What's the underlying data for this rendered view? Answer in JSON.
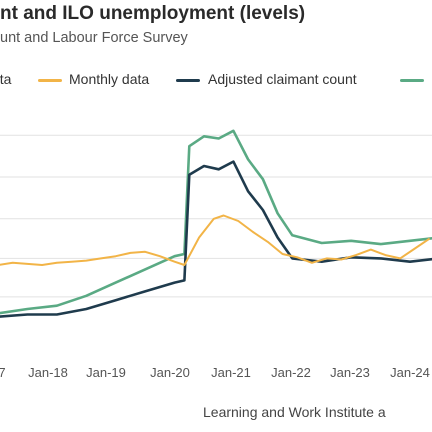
{
  "title": "nt and ILO unemployment (levels)",
  "subtitle": "unt and Labour Force Survey",
  "footer": "Learning and Work Institute a",
  "colors": {
    "monthly": "#f2b447",
    "adjusted": "#1f3b4d",
    "ilo": "#5aaa84",
    "grid": "#e2e2e2",
    "text": "#333333"
  },
  "legend": [
    {
      "label": "ata",
      "color": "#f2b447"
    },
    {
      "label": "Monthly data",
      "color": "#f2b447"
    },
    {
      "label": "Adjusted claimant count",
      "color": "#1f3b4d"
    },
    {
      "label": "",
      "color": "#5aaa84"
    }
  ],
  "chart_data": {
    "type": "line",
    "title": "nt and ILO unemployment (levels)",
    "subtitle": "unt and Labour Force Survey",
    "x_tick_labels": [
      "7",
      "Jan-18",
      "Jan-19",
      "Jan-20",
      "Jan-21",
      "Jan-22",
      "Jan-23",
      "Jan-24"
    ],
    "grid": true,
    "legend_position": "top",
    "series": [
      {
        "name": "Monthly data",
        "color": "#f2b447",
        "values": [
          [
            "2017-01",
            0.0
          ],
          [
            "2017-04",
            0.02
          ],
          [
            "2017-07",
            0.01
          ],
          [
            "2017-10",
            0.0
          ],
          [
            "2018-01",
            0.02
          ],
          [
            "2018-04",
            0.03
          ],
          [
            "2018-07",
            0.04
          ],
          [
            "2018-10",
            0.06
          ],
          [
            "2019-01",
            0.08
          ],
          [
            "2019-04",
            0.11
          ],
          [
            "2019-07",
            0.12
          ],
          [
            "2019-10",
            0.08
          ],
          [
            "2020-01",
            0.03
          ],
          [
            "2020-03",
            0.0
          ],
          [
            "2020-06",
            0.25
          ],
          [
            "2020-09",
            0.42
          ],
          [
            "2020-11",
            0.45
          ],
          [
            "2021-02",
            0.4
          ],
          [
            "2021-05",
            0.3
          ],
          [
            "2021-08",
            0.21
          ],
          [
            "2021-11",
            0.1
          ],
          [
            "2022-02",
            0.07
          ],
          [
            "2022-05",
            0.02
          ],
          [
            "2022-08",
            0.06
          ],
          [
            "2022-11",
            0.05
          ],
          [
            "2023-02",
            0.09
          ],
          [
            "2023-05",
            0.14
          ],
          [
            "2023-08",
            0.09
          ],
          [
            "2023-11",
            0.06
          ],
          [
            "2024-02",
            0.15
          ],
          [
            "2024-05",
            0.24
          ]
        ]
      },
      {
        "name": "Adjusted claimant count",
        "color": "#1f3b4d",
        "values": [
          [
            "2017-01",
            -0.47
          ],
          [
            "2017-07",
            -0.45
          ],
          [
            "2018-01",
            -0.45
          ],
          [
            "2018-07",
            -0.4
          ],
          [
            "2019-01",
            -0.32
          ],
          [
            "2019-07",
            -0.24
          ],
          [
            "2020-01",
            -0.16
          ],
          [
            "2020-03",
            -0.14
          ],
          [
            "2020-04",
            0.82
          ],
          [
            "2020-07",
            0.9
          ],
          [
            "2020-10",
            0.87
          ],
          [
            "2021-01",
            0.94
          ],
          [
            "2021-04",
            0.67
          ],
          [
            "2021-07",
            0.5
          ],
          [
            "2021-10",
            0.25
          ],
          [
            "2022-01",
            0.06
          ],
          [
            "2022-07",
            0.03
          ],
          [
            "2023-01",
            0.07
          ],
          [
            "2023-07",
            0.06
          ],
          [
            "2024-01",
            0.03
          ],
          [
            "2024-07",
            0.06
          ]
        ]
      },
      {
        "name": "",
        "color": "#5aaa84",
        "values": [
          [
            "2017-01",
            -0.44
          ],
          [
            "2017-07",
            -0.4
          ],
          [
            "2018-01",
            -0.37
          ],
          [
            "2018-07",
            -0.28
          ],
          [
            "2019-01",
            -0.16
          ],
          [
            "2019-07",
            -0.04
          ],
          [
            "2020-01",
            0.08
          ],
          [
            "2020-03",
            0.1
          ],
          [
            "2020-04",
            1.08
          ],
          [
            "2020-07",
            1.17
          ],
          [
            "2020-10",
            1.15
          ],
          [
            "2021-01",
            1.22
          ],
          [
            "2021-04",
            0.96
          ],
          [
            "2021-07",
            0.78
          ],
          [
            "2021-10",
            0.47
          ],
          [
            "2022-01",
            0.27
          ],
          [
            "2022-07",
            0.2
          ],
          [
            "2023-01",
            0.22
          ],
          [
            "2023-07",
            0.19
          ],
          [
            "2024-01",
            0.22
          ],
          [
            "2024-07",
            0.25
          ]
        ]
      }
    ]
  }
}
